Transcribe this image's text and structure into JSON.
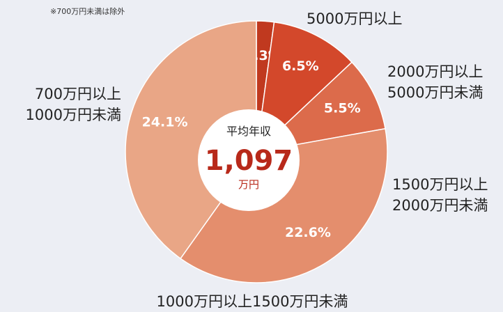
{
  "chart_data": {
    "type": "pie",
    "note": "※700万円未満は除外",
    "categories": [
      "5000万円以上",
      "2000万円以上\n5000万円未満",
      "1500万円以上\n2000万円未満",
      "1000万円以上1500万円未満",
      "700万円以上\n1000万円未満"
    ],
    "values": [
      1.3,
      6.5,
      5.5,
      22.6,
      24.1
    ],
    "value_labels": [
      "1.3%",
      "6.5%",
      "5.5%",
      "22.6%",
      "24.1%"
    ],
    "colors": [
      "#c0391f",
      "#d3482b",
      "#dc6b4b",
      "#e48e6d",
      "#e9a686"
    ],
    "center": {
      "title": "平均年収",
      "value": "1,097",
      "unit": "万円"
    }
  }
}
